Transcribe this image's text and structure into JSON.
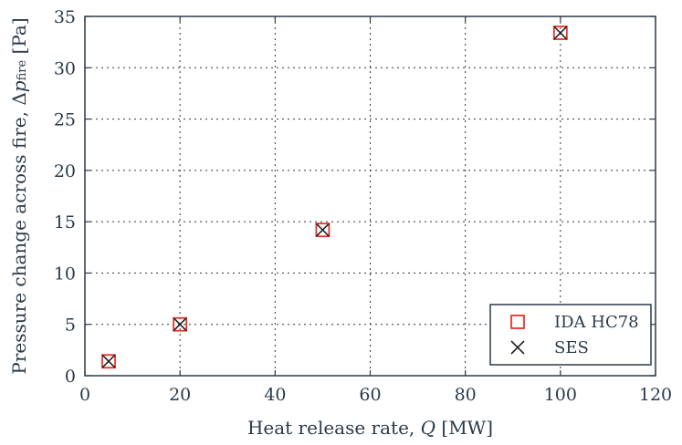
{
  "chart_data": {
    "type": "scatter",
    "xlabel_main": "Heat release rate, ",
    "xlabel_var": "Q",
    "xlabel_unit": " [MW]",
    "ylabel_main": "Pressure change across fire, Δ",
    "ylabel_var": "p",
    "ylabel_sub": "fire",
    "ylabel_unit": " [Pa]",
    "xlim": [
      0,
      120
    ],
    "ylim": [
      0,
      35
    ],
    "xticks": [
      0,
      20,
      40,
      60,
      80,
      100,
      120
    ],
    "yticks": [
      0,
      5,
      10,
      15,
      20,
      25,
      30,
      35
    ],
    "grid": true,
    "legend_position": "bottom-right",
    "series": [
      {
        "name": "IDA HC78",
        "marker": "square",
        "color": "#e8352a",
        "x": [
          5,
          20,
          50,
          100
        ],
        "y": [
          1.4,
          5.0,
          14.2,
          33.4
        ]
      },
      {
        "name": "SES",
        "marker": "x",
        "color": "#222222",
        "x": [
          5,
          20,
          50,
          100
        ],
        "y": [
          1.4,
          5.0,
          14.2,
          33.4
        ]
      }
    ]
  }
}
